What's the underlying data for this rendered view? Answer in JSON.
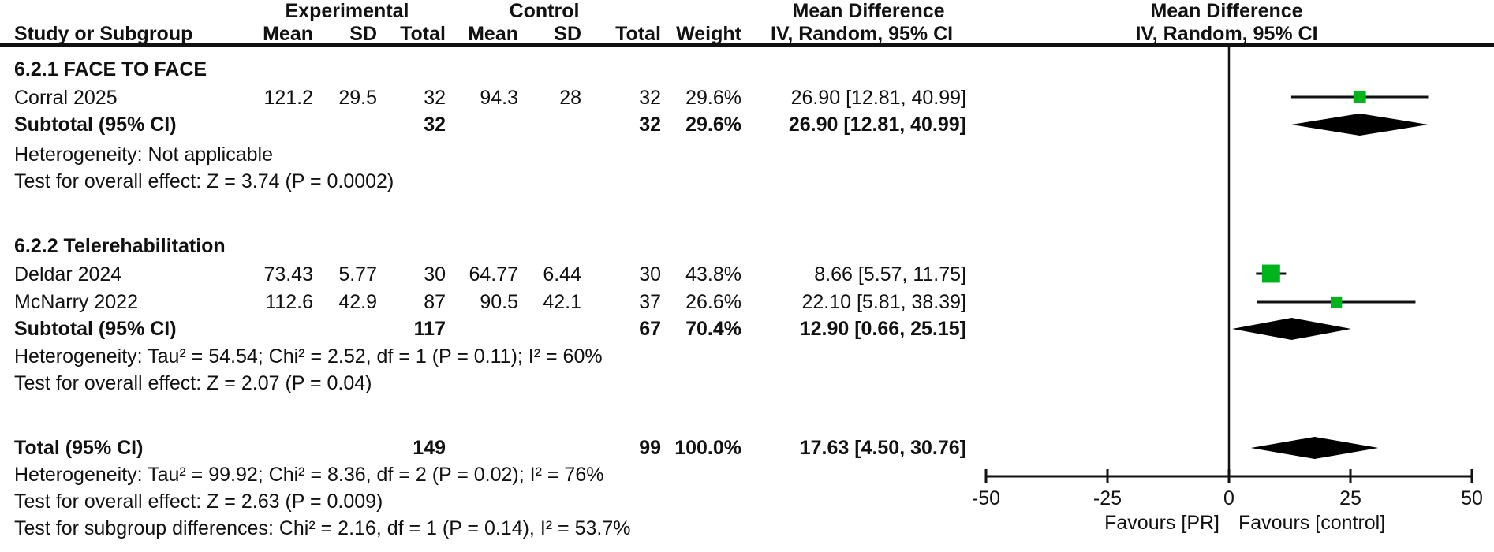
{
  "title_row": {
    "experimental": "Experimental",
    "control": "Control",
    "md_text_col": "Mean Difference",
    "md_plot_col": "Mean Difference"
  },
  "header_row": {
    "study": "Study or Subgroup",
    "mean1": "Mean",
    "sd1": "SD",
    "total1": "Total",
    "mean2": "Mean",
    "sd2": "SD",
    "total2": "Total",
    "weight": "Weight",
    "ci_text_col": "IV, Random, 95% CI",
    "ci_plot_col": "IV, Random, 95% CI"
  },
  "rows": [
    {
      "type": "group",
      "label": "6.2.1 FACE TO FACE"
    },
    {
      "type": "study",
      "label": "Corral 2025",
      "mean1": "121.2",
      "sd1": "29.5",
      "total1": "32",
      "mean2": "94.3",
      "sd2": "28",
      "total2": "32",
      "weight": "29.6%",
      "ci": "26.90 [12.81, 40.99]"
    },
    {
      "type": "subtotal",
      "label": "Subtotal (95% CI)",
      "total1": "32",
      "total2": "32",
      "weight": "29.6%",
      "ci": "26.90 [12.81, 40.99]"
    },
    {
      "type": "note",
      "label": "Heterogeneity: Not applicable"
    },
    {
      "type": "note",
      "label": "Test for overall effect: Z = 3.74 (P = 0.0002)"
    },
    {
      "type": "group",
      "label": "6.2.2 Telerehabilitation"
    },
    {
      "type": "study",
      "label": "Deldar 2024",
      "mean1": "73.43",
      "sd1": "5.77",
      "total1": "30",
      "mean2": "64.77",
      "sd2": "6.44",
      "total2": "30",
      "weight": "43.8%",
      "ci": "8.66 [5.57, 11.75]"
    },
    {
      "type": "study",
      "label": "McNarry 2022",
      "mean1": "112.6",
      "sd1": "42.9",
      "total1": "87",
      "mean2": "90.5",
      "sd2": "42.1",
      "total2": "37",
      "weight": "26.6%",
      "ci": "22.10 [5.81, 38.39]"
    },
    {
      "type": "subtotal",
      "label": "Subtotal (95% CI)",
      "total1": "117",
      "total2": "67",
      "weight": "70.4%",
      "ci": "12.90 [0.66, 25.15]"
    },
    {
      "type": "note",
      "label": "Heterogeneity: Tau² = 54.54; Chi² = 2.52, df = 1 (P = 0.11); I² = 60%"
    },
    {
      "type": "note",
      "label": "Test for overall effect: Z = 2.07 (P = 0.04)"
    },
    {
      "type": "subtotal",
      "label": "Total (95% CI)",
      "total1": "149",
      "total2": "99",
      "weight": "100.0%",
      "ci": "17.63 [4.50, 30.76]"
    },
    {
      "type": "note",
      "label": "Heterogeneity: Tau² = 99.92; Chi² = 8.36, df = 2 (P = 0.02); I² = 76%"
    },
    {
      "type": "note",
      "label": "Test for overall effect: Z = 2.63 (P = 0.009)"
    },
    {
      "type": "note",
      "label": "Test for subgroup differences: Chi² = 2.16, df = 1 (P = 0.14), I² = 53.7%"
    }
  ],
  "chart_data": {
    "type": "forest",
    "effect_measure": "Mean Difference, IV, Random, 95% CI",
    "x_axis": {
      "range": [
        -50,
        50
      ],
      "ticks": [
        -50,
        -25,
        0,
        25,
        50
      ],
      "tick_labels": [
        "-50",
        "-25",
        "0",
        "25",
        "50"
      ],
      "favours_left": "Favours [PR]",
      "favours_right": "Favours [control]"
    },
    "studies": [
      {
        "id": "corral",
        "label": "Corral 2025",
        "md": 26.9,
        "lo": 12.81,
        "hi": 40.99,
        "weight": 29.6,
        "marker": "square"
      },
      {
        "id": "subtotal1",
        "label": "Subtotal 6.2.1 (95% CI)",
        "md": 26.9,
        "lo": 12.81,
        "hi": 40.99,
        "marker": "diamond"
      },
      {
        "id": "deldar",
        "label": "Deldar 2024",
        "md": 8.66,
        "lo": 5.57,
        "hi": 11.75,
        "weight": 43.8,
        "marker": "square"
      },
      {
        "id": "mcnarry",
        "label": "McNarry 2022",
        "md": 22.1,
        "lo": 5.81,
        "hi": 38.39,
        "weight": 26.6,
        "marker": "square"
      },
      {
        "id": "subtotal2",
        "label": "Subtotal 6.2.2 (95% CI)",
        "md": 12.9,
        "lo": 0.66,
        "hi": 25.15,
        "marker": "diamond"
      },
      {
        "id": "total",
        "label": "Total (95% CI)",
        "md": 17.63,
        "lo": 4.5,
        "hi": 30.76,
        "marker": "diamond"
      }
    ],
    "colors": {
      "square": "#00b41e",
      "diamond": "#000000",
      "line": "#111111",
      "text": "#111111"
    }
  }
}
